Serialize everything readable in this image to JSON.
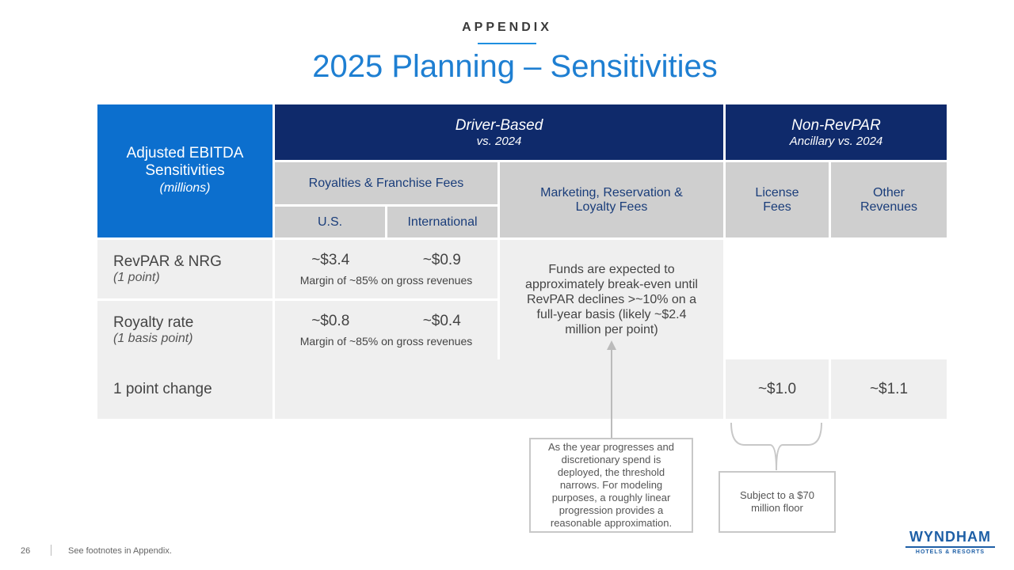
{
  "header": {
    "section": "APPENDIX",
    "title": "2025 Planning – Sensitivities"
  },
  "table": {
    "corner": {
      "line1": "Adjusted EBITDA",
      "line2": "Sensitivities",
      "line3": "(millions)"
    },
    "driver_based": {
      "title": "Driver-Based",
      "sub": "vs. 2024"
    },
    "non_revpar": {
      "title": "Non-RevPAR",
      "sub": "Ancillary vs. 2024"
    },
    "royalties": "Royalties & Franchise Fees",
    "us": "U.S.",
    "international": "International",
    "marketing_line1": "Marketing, Reservation &",
    "marketing_line2": "Loyalty Fees",
    "license_line1": "License",
    "license_line2": "Fees",
    "other_line1": "Other",
    "other_line2": "Revenues",
    "rows": {
      "revpar": {
        "label": "RevPAR & NRG",
        "sub": "(1 point)",
        "us": "~$3.4",
        "intl": "~$0.9",
        "margin": "Margin of ~85% on gross revenues"
      },
      "royalty": {
        "label": "Royalty rate",
        "sub": "(1 basis point)",
        "us": "~$0.8",
        "intl": "~$0.4",
        "margin": "Margin of ~85% on gross revenues"
      },
      "point_change": {
        "label": "1 point change",
        "license": "~$1.0",
        "other": "~$1.1"
      }
    },
    "marketing_note": {
      "l1": "Funds are expected to",
      "l2": "approximately break-even until",
      "l3": "RevPAR declines >~10% on a",
      "l4": "full-year basis (likely ~$2.4",
      "l5": "million per point)"
    }
  },
  "callouts": {
    "threshold": {
      "l1": "As the year progresses and",
      "l2": "discretionary spend is",
      "l3": "deployed, the threshold",
      "l4": "narrows. For modeling",
      "l5": "purposes, a roughly linear",
      "l6": "progression provides a",
      "l7": "reasonable approximation."
    },
    "floor": {
      "l1": "Subject to a $70",
      "l2": "million floor"
    }
  },
  "footer": {
    "page": "26",
    "note": "See footnotes in Appendix."
  },
  "logo": {
    "main": "WYNDHAM",
    "sub": "HOTELS & RESORTS"
  }
}
